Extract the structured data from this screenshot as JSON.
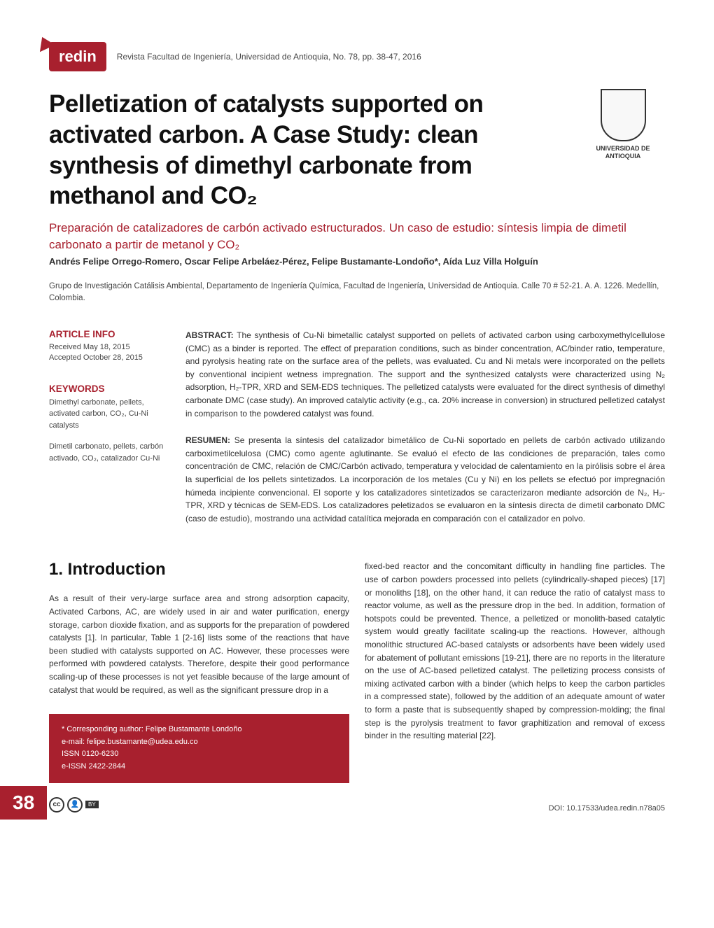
{
  "journal": {
    "logo_text": "redin",
    "reference": "Revista Facultad de Ingeniería, Universidad de Antioquia, No. 78, pp. 38-47, 2016",
    "university_name": "UNIVERSIDAD DE ANTIOQUIA"
  },
  "article": {
    "title_en": "Pelletization of catalysts supported on activated carbon. A Case Study: clean synthesis of dimethyl carbonate from methanol and CO₂",
    "title_es": "Preparación de catalizadores de carbón activado estructurados. Un caso de estudio: síntesis limpia de dimetil carbonato a partir de metanol y CO₂",
    "authors": "Andrés Felipe Orrego-Romero, Oscar Felipe Arbeláez-Pérez, Felipe Bustamante-Londoño*, Aída Luz Villa Holguín",
    "affiliation": "Grupo de Investigación Catálisis Ambiental, Departamento de Ingeniería Química, Facultad de Ingeniería, Universidad de Antioquia. Calle 70 # 52-21. A. A. 1226. Medellín, Colombia."
  },
  "info": {
    "label": "ARTICLE INFO",
    "received": "Received May 18, 2015",
    "accepted": "Accepted October 28, 2015"
  },
  "keywords": {
    "label": "KEYWORDS",
    "en": "Dimethyl carbonate, pellets, activated carbon, CO₂, Cu-Ni catalysts",
    "es": "Dimetil carbonato, pellets, carbón activado, CO₂, catalizador Cu-Ni"
  },
  "abstract": {
    "label_en": "ABSTRACT:",
    "text_en": "The synthesis of Cu-Ni bimetallic catalyst supported on pellets of activated carbon using carboxymethylcellulose (CMC) as a binder is reported. The effect of preparation conditions, such as binder concentration, AC/binder ratio, temperature, and pyrolysis heating rate on the surface area of the pellets, was evaluated. Cu and Ni metals were incorporated on the pellets by conventional incipient wetness impregnation. The support and the synthesized catalysts were characterized using N₂ adsorption, H₂-TPR, XRD and SEM-EDS techniques. The pelletized catalysts were evaluated for the direct synthesis of dimethyl carbonate DMC (case study). An improved catalytic activity (e.g., ca. 20% increase in conversion) in structured pelletized catalyst in comparison to the powdered catalyst was found.",
    "label_es": "RESUMEN:",
    "text_es": "Se presenta la síntesis del catalizador bimetálico de Cu-Ni soportado en pellets de carbón activado utilizando carboximetilcelulosa (CMC) como agente aglutinante. Se evaluó el efecto de las condiciones de preparación, tales como concentración de CMC, relación de CMC/Carbón activado, temperatura y velocidad de calentamiento en la pirólisis sobre el área la superficial de los pellets sintetizados. La incorporación de los metales (Cu y Ni) en los pellets se efectuó por impregnación húmeda incipiente convencional. El soporte y los catalizadores sintetizados se caracterizaron mediante adsorción de N₂, H₂-TPR, XRD y técnicas de SEM-EDS. Los catalizadores peletizados se evaluaron en la síntesis directa de dimetil carbonato DMC (caso de estudio), mostrando una actividad catalítica mejorada en comparación con el catalizador en polvo."
  },
  "intro": {
    "title": "1. Introduction",
    "col1": "As a result of their very-large surface area and strong adsorption capacity, Activated Carbons, AC, are widely used in air and water purification, energy storage, carbon dioxide fixation, and as supports for the preparation of powdered catalysts [1]. In particular, Table 1 [2-16] lists some of the reactions that have been studied with catalysts supported on AC. However, these processes were performed with powdered catalysts. Therefore, despite their good performance scaling-up of these processes is not yet feasible because of the large amount of catalyst that would be required, as well as the significant pressure drop in a",
    "col2": "fixed-bed reactor and the concomitant difficulty in handling fine particles. The use of carbon powders processed into pellets (cylindrically-shaped pieces) [17] or monoliths [18], on the other hand, it can reduce the ratio of catalyst mass to reactor volume, as well as the pressure drop in the bed. In addition, formation of hotspots could be prevented. Thence, a pelletized or monolith-based catalytic system would greatly facilitate scaling-up the reactions. However, although monolithic structured AC-based catalysts or adsorbents have been widely used for abatement of pollutant emissions [19-21], there are no reports in the literature on the use of AC-based pelletized catalyst. The pelletizing process consists of mixing activated carbon with a binder (which helps to keep the carbon particles in a compressed state), followed by the addition of an adequate amount of water to form a paste that is subsequently shaped by compression-molding; the final step is the pyrolysis treatment to favor graphitization and removal of excess binder in the resulting material [22]."
  },
  "corresponding": {
    "author": "* Corresponding author: Felipe Bustamante Londoño",
    "email": "e-mail: felipe.bustamante@udea.edu.co",
    "issn": "ISSN 0120-6230",
    "eissn": "e-ISSN 2422-2844"
  },
  "footer": {
    "doi": "DOI: 10.17533/udea.redin.n78a05",
    "page_number": "38"
  },
  "colors": {
    "brand_red": "#a8202e",
    "text_dark": "#333333",
    "text_muted": "#444444",
    "background": "#ffffff"
  }
}
